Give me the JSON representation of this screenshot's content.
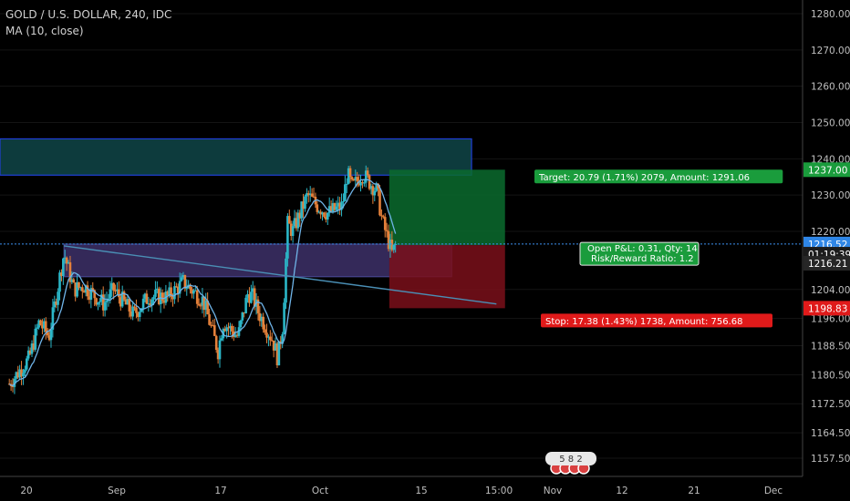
{
  "header": {
    "symbol_line": "GOLD / U.S. DOLLAR, 240, IDC",
    "indicator_line": "MA (10, close)"
  },
  "colors": {
    "background": "#000000",
    "up_candle": "#2bb7c8",
    "down_candle": "#e4803a",
    "ma_line": "#6fb4e8",
    "target_zone": "#0b6b2e",
    "stop_zone": "#7a0f1a",
    "resistance_zone": "#0d3b3d",
    "support_zone": "#3a2e63",
    "current_price_line": "#3d8ff0",
    "target_tag": "#1a9c3c",
    "stop_tag": "#e01a1a"
  },
  "chart_data": {
    "type": "candlestick",
    "title": "GOLD / U.S. DOLLAR, 240, IDC",
    "indicator": "MA (10, close)",
    "ylim": [
      1152,
      1285
    ],
    "y_ticks": [
      1280.0,
      1270.0,
      1260.0,
      1250.0,
      1240.0,
      1230.0,
      1220.0,
      1204.0,
      1196.0,
      1188.5,
      1180.5,
      1172.5,
      1164.5,
      1157.5
    ],
    "x_tick_labels": [
      "20",
      "Sep",
      "17",
      "Oct",
      "15",
      "15:00",
      "Nov",
      "12",
      "21",
      "Dec"
    ],
    "price_path": [
      [
        "Aug 16",
        1178
      ],
      [
        "Aug 20",
        1185
      ],
      [
        "Aug 22",
        1195
      ],
      [
        "Aug 24",
        1191
      ],
      [
        "Aug 27",
        1214
      ],
      [
        "Aug 29",
        1204
      ],
      [
        "Aug 31",
        1205
      ],
      [
        "Sep 04",
        1200
      ],
      [
        "Sep 06",
        1204
      ],
      [
        "Sep 10",
        1197
      ],
      [
        "Sep 13",
        1202
      ],
      [
        "Sep 17",
        1202
      ],
      [
        "Sep 20",
        1206
      ],
      [
        "Sep 24",
        1201
      ],
      [
        "Sep 27",
        1187
      ],
      [
        "Sep 28",
        1195
      ],
      [
        "Oct 01",
        1191
      ],
      [
        "Oct 03",
        1203
      ],
      [
        "Oct 04",
        1202
      ],
      [
        "Oct 05",
        1198
      ],
      [
        "Oct 08",
        1190
      ],
      [
        "Oct 09",
        1185
      ],
      [
        "Oct 10",
        1194
      ],
      [
        "Oct 11",
        1222
      ],
      [
        "Oct 12",
        1220
      ],
      [
        "Oct 15",
        1230
      ],
      [
        "Oct 17",
        1227
      ],
      [
        "Oct 19",
        1225
      ],
      [
        "Oct 22",
        1227
      ],
      [
        "Oct 23",
        1236
      ],
      [
        "Oct 24",
        1232
      ],
      [
        "Oct 26",
        1236
      ],
      [
        "Oct 29",
        1231
      ],
      [
        "Oct 30",
        1223
      ],
      [
        "Nov 01",
        1214
      ],
      [
        "Nov 02",
        1217
      ]
    ],
    "resistance_zone": [
      1235.5,
      1245.5
    ],
    "support_zone": [
      1207.5,
      1216.5
    ],
    "trendline": [
      [
        "Aug 27",
        1216
      ],
      [
        "Nov 22",
        1200
      ]
    ],
    "position": {
      "target_label": "Target: 20.79 (1.71%) 2079, Amount: 1291.06",
      "stop_label": "Stop: 17.38 (1.43%) 1738, Amount: 756.68",
      "pnl_label": "Open P&L: 0.31, Qty: 14",
      "rr_label": "Risk/Reward Ratio: 1.2",
      "entry": 1216.21,
      "target": 1237.0,
      "stop": 1198.83
    },
    "price_tags": {
      "target": "1237.00",
      "current": "1216.52",
      "countdown": "01:19:39",
      "entry": "1216.21",
      "stop": "1198.83"
    },
    "events_badge": "5 8 2"
  }
}
